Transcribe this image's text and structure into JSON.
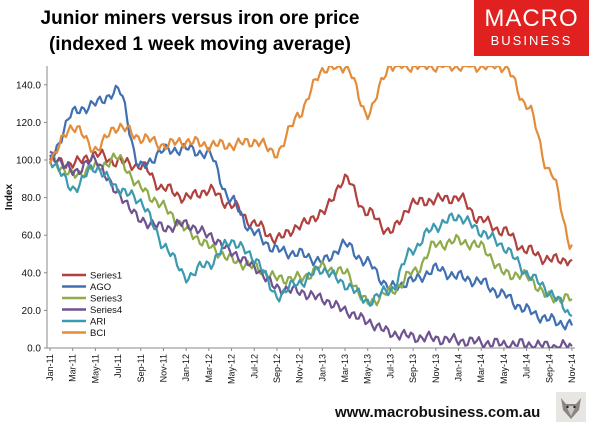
{
  "title": {
    "line1": "Junior miners versus iron ore price",
    "line2": "(indexed 1 week moving average)"
  },
  "brand": {
    "line1": "MACRO",
    "line2": "BUSINESS",
    "color": "#e0211f"
  },
  "footer": {
    "url": "www.macrobusiness.com.au"
  },
  "icons": {
    "logo_mascot": "fox-mascot-icon"
  },
  "chart_data": {
    "type": "line",
    "ylabel": "Index",
    "xlabel": "",
    "ylim": [
      0,
      150
    ],
    "yticks": [
      0,
      20,
      40,
      60,
      80,
      100,
      120,
      140
    ],
    "ytick_labels": [
      "0.0",
      "20.0",
      "40.0",
      "60.0",
      "80.0",
      "100.0",
      "120.0",
      "140.0"
    ],
    "grid": false,
    "legend_position": "bottom-left",
    "categories": [
      "Jan-11",
      "Mar-11",
      "May-11",
      "Jul-11",
      "Sep-11",
      "Nov-11",
      "Jan-12",
      "Mar-12",
      "May-12",
      "Jul-12",
      "Sep-12",
      "Nov-12",
      "Jan-13",
      "Mar-13",
      "May-13",
      "Jul-13",
      "Sep-13",
      "Nov-13",
      "Jan-14",
      "Mar-14",
      "May-14",
      "Jul-14",
      "Sep-14",
      "Nov-14"
    ],
    "series": [
      {
        "name": "Series1",
        "color": "#b0413e",
        "values": [
          100,
          98,
          103,
          99,
          97,
          85,
          80,
          84,
          76,
          66,
          58,
          65,
          72,
          90,
          72,
          62,
          77,
          79,
          80,
          68,
          62,
          52,
          47,
          47
        ]
      },
      {
        "name": "AGO",
        "color": "#4170b2",
        "values": [
          100,
          125,
          130,
          137,
          96,
          105,
          106,
          103,
          78,
          61,
          52,
          50,
          46,
          55,
          45,
          32,
          36,
          42,
          38,
          35,
          28,
          20,
          15,
          12
        ]
      },
      {
        "name": "Series3",
        "color": "#8faa4a",
        "values": [
          100,
          92,
          96,
          101,
          85,
          75,
          63,
          54,
          47,
          43,
          37,
          37,
          43,
          40,
          24,
          30,
          40,
          55,
          57,
          54,
          40,
          38,
          27,
          26
        ]
      },
      {
        "name": "Series4",
        "color": "#6f5390",
        "values": [
          103,
          94,
          100,
          82,
          68,
          64,
          66,
          60,
          51,
          43,
          32,
          30,
          26,
          20,
          14,
          8,
          6,
          5,
          4,
          3,
          2,
          2,
          1,
          1
        ]
      },
      {
        "name": "ARI",
        "color": "#3c9ab0",
        "values": [
          100,
          85,
          96,
          85,
          78,
          55,
          38,
          45,
          57,
          48,
          28,
          35,
          42,
          34,
          25,
          31,
          53,
          65,
          70,
          62,
          54,
          40,
          30,
          17
        ]
      },
      {
        "name": "BCI",
        "color": "#e38c3c",
        "values": [
          101,
          118,
          106,
          118,
          112,
          108,
          110,
          108,
          108,
          110,
          104,
          125,
          148,
          150,
          125,
          150,
          150,
          150,
          150,
          150,
          150,
          130,
          95,
          55
        ]
      }
    ]
  }
}
